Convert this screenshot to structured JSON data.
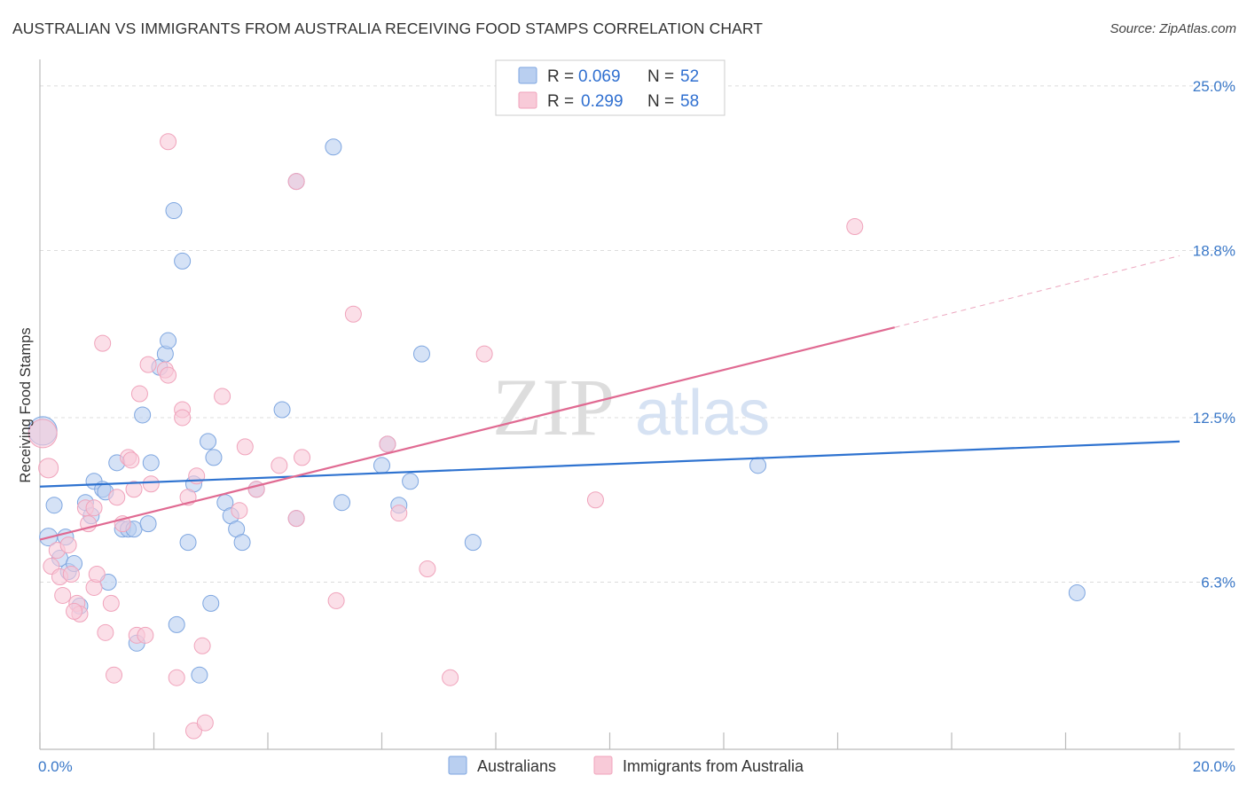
{
  "header": {
    "title": "AUSTRALIAN VS IMMIGRANTS FROM AUSTRALIA RECEIVING FOOD STAMPS CORRELATION CHART",
    "source": "Source: ZipAtlas.com"
  },
  "watermark": {
    "zip": "ZIP",
    "atlas": "atlas"
  },
  "chart_data": {
    "type": "scatter",
    "title": "AUSTRALIAN VS IMMIGRANTS FROM AUSTRALIA RECEIVING FOOD STAMPS CORRELATION CHART",
    "xlabel": "",
    "ylabel": "Receiving Food Stamps",
    "xlim": [
      0,
      20
    ],
    "ylim": [
      0,
      26
    ],
    "x_tick_labels": [
      {
        "value": 0,
        "label": "0.0%"
      },
      {
        "value": 20,
        "label": "20.0%"
      }
    ],
    "y_tick_labels": [
      {
        "value": 6.3,
        "label": "6.3%"
      },
      {
        "value": 12.5,
        "label": "12.5%"
      },
      {
        "value": 18.8,
        "label": "18.8%"
      },
      {
        "value": 25.0,
        "label": "25.0%"
      }
    ],
    "grid": true,
    "legend": {
      "position": "top-center",
      "entries": [
        {
          "r_label": "R =",
          "r_value": "0.069",
          "n_label": "N =",
          "n_value": "52"
        },
        {
          "r_label": "R =",
          "r_value": "0.299",
          "n_label": "N =",
          "n_value": "58"
        }
      ]
    },
    "series": [
      {
        "name": "Australians",
        "color": "#7ea6e0",
        "fill": "#b9cff0",
        "line_color": "#2f73d0",
        "trend": {
          "x0": 0,
          "y0": 9.9,
          "x1": 20,
          "y1": 11.6
        },
        "points": [
          [
            0.05,
            12.0,
            16
          ],
          [
            0.15,
            8.0,
            10
          ],
          [
            0.25,
            9.2,
            9
          ],
          [
            0.35,
            7.2,
            9
          ],
          [
            0.45,
            8.0,
            9
          ],
          [
            0.5,
            6.7,
            9
          ],
          [
            0.6,
            7.0,
            9
          ],
          [
            0.7,
            5.4,
            9
          ],
          [
            0.8,
            9.3,
            9
          ],
          [
            0.9,
            8.8,
            9
          ],
          [
            0.95,
            10.1,
            9
          ],
          [
            1.1,
            9.8,
            9
          ],
          [
            1.15,
            9.7,
            9
          ],
          [
            1.2,
            6.3,
            9
          ],
          [
            1.35,
            10.8,
            9
          ],
          [
            1.45,
            8.3,
            9
          ],
          [
            1.55,
            8.3,
            9
          ],
          [
            1.65,
            8.3,
            9
          ],
          [
            1.7,
            4.0,
            9
          ],
          [
            1.8,
            12.6,
            9
          ],
          [
            1.9,
            8.5,
            9
          ],
          [
            1.95,
            10.8,
            9
          ],
          [
            2.1,
            14.4,
            9
          ],
          [
            2.2,
            14.9,
            9
          ],
          [
            2.25,
            15.4,
            9
          ],
          [
            2.35,
            20.3,
            9
          ],
          [
            2.4,
            4.7,
            9
          ],
          [
            2.5,
            18.4,
            9
          ],
          [
            2.6,
            7.8,
            9
          ],
          [
            2.7,
            10.0,
            9
          ],
          [
            2.8,
            2.8,
            9
          ],
          [
            2.95,
            11.6,
            9
          ],
          [
            3.0,
            5.5,
            9
          ],
          [
            3.05,
            11.0,
            9
          ],
          [
            3.25,
            9.3,
            9
          ],
          [
            3.35,
            8.8,
            9
          ],
          [
            3.45,
            8.3,
            9
          ],
          [
            3.55,
            7.8,
            9
          ],
          [
            3.8,
            9.8,
            9
          ],
          [
            4.25,
            12.8,
            9
          ],
          [
            4.5,
            21.4,
            9
          ],
          [
            4.5,
            8.7,
            9
          ],
          [
            5.15,
            22.7,
            9
          ],
          [
            5.3,
            9.3,
            9
          ],
          [
            6.0,
            10.7,
            9
          ],
          [
            6.1,
            11.5,
            9
          ],
          [
            6.3,
            9.2,
            9
          ],
          [
            6.5,
            10.1,
            9
          ],
          [
            6.7,
            14.9,
            9
          ],
          [
            7.6,
            7.8,
            9
          ],
          [
            12.6,
            10.7,
            9
          ],
          [
            18.2,
            5.9,
            9
          ]
        ]
      },
      {
        "name": "Immigrants from Australia",
        "color": "#f0a3bb",
        "fill": "#f8cad8",
        "line_color": "#e06a92",
        "trend": {
          "x0": 0,
          "y0": 7.9,
          "x1": 15.0,
          "y1": 15.9
        },
        "trend_extension": {
          "x0": 15.0,
          "y0": 15.9,
          "x1": 20,
          "y1": 18.6
        },
        "points": [
          [
            0.05,
            11.9,
            16
          ],
          [
            0.15,
            10.6,
            11
          ],
          [
            0.2,
            6.9,
            9
          ],
          [
            0.3,
            7.5,
            9
          ],
          [
            0.35,
            6.5,
            9
          ],
          [
            0.4,
            5.8,
            9
          ],
          [
            0.5,
            7.7,
            9
          ],
          [
            0.55,
            6.6,
            9
          ],
          [
            0.65,
            5.5,
            9
          ],
          [
            0.7,
            5.1,
            9
          ],
          [
            0.8,
            9.1,
            9
          ],
          [
            0.85,
            8.5,
            9
          ],
          [
            0.95,
            9.1,
            9
          ],
          [
            0.95,
            6.1,
            9
          ],
          [
            1.0,
            6.6,
            9
          ],
          [
            1.1,
            15.3,
            9
          ],
          [
            1.15,
            4.4,
            9
          ],
          [
            1.25,
            5.5,
            9
          ],
          [
            1.3,
            2.8,
            9
          ],
          [
            1.35,
            9.5,
            9
          ],
          [
            1.45,
            8.5,
            9
          ],
          [
            1.55,
            11.0,
            9
          ],
          [
            1.6,
            10.9,
            9
          ],
          [
            1.65,
            9.8,
            9
          ],
          [
            1.7,
            4.3,
            9
          ],
          [
            1.75,
            13.4,
            9
          ],
          [
            1.85,
            4.3,
            9
          ],
          [
            1.9,
            14.5,
            9
          ],
          [
            1.95,
            10.0,
            9
          ],
          [
            2.2,
            14.3,
            9
          ],
          [
            2.25,
            14.1,
            9
          ],
          [
            2.25,
            22.9,
            9
          ],
          [
            2.4,
            2.7,
            9
          ],
          [
            2.5,
            12.8,
            9
          ],
          [
            2.5,
            12.5,
            9
          ],
          [
            2.6,
            9.5,
            9
          ],
          [
            2.7,
            0.7,
            9
          ],
          [
            2.75,
            10.3,
            9
          ],
          [
            2.85,
            3.9,
            9
          ],
          [
            2.9,
            1.0,
            9
          ],
          [
            3.2,
            13.3,
            9
          ],
          [
            3.5,
            9.0,
            9
          ],
          [
            3.6,
            11.4,
            9
          ],
          [
            3.8,
            9.8,
            9
          ],
          [
            4.2,
            10.7,
            9
          ],
          [
            4.5,
            21.4,
            9
          ],
          [
            4.5,
            8.7,
            9
          ],
          [
            4.6,
            11.0,
            9
          ],
          [
            5.2,
            5.6,
            9
          ],
          [
            5.5,
            16.4,
            9
          ],
          [
            6.1,
            11.5,
            9
          ],
          [
            6.3,
            8.9,
            9
          ],
          [
            6.8,
            6.8,
            9
          ],
          [
            7.2,
            2.7,
            9
          ],
          [
            7.8,
            14.9,
            9
          ],
          [
            9.75,
            9.4,
            9
          ],
          [
            14.3,
            19.7,
            9
          ],
          [
            0.6,
            5.2,
            9
          ]
        ]
      }
    ]
  },
  "bottom_legend": {
    "items": [
      {
        "label": "Australians"
      },
      {
        "label": "Immigrants from Australia"
      }
    ]
  }
}
